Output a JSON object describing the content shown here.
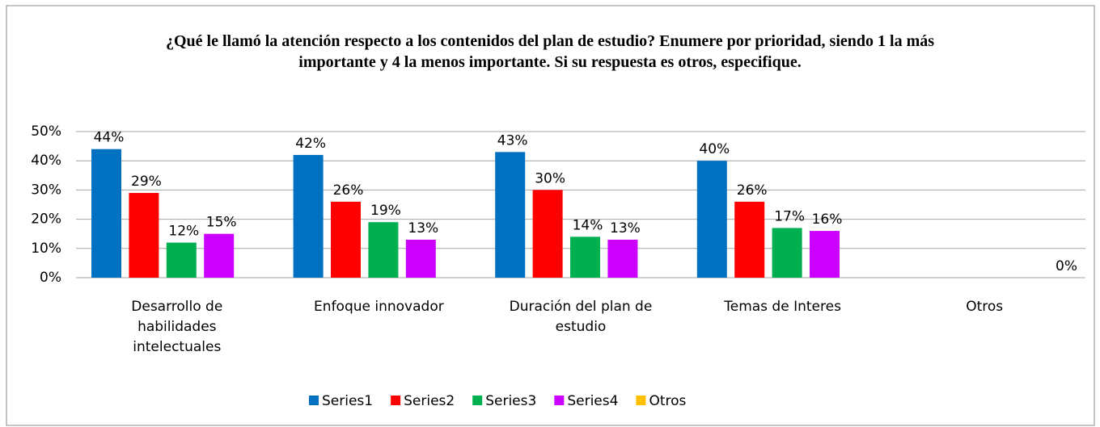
{
  "chart_data": {
    "type": "bar",
    "title": "¿Qué le llamó la atención respecto a los contenidos del plan de estudio? Enumere por prioridad, siendo 1 la más importante y 4 la menos importante. Si su respuesta es otros, especifique.",
    "categories": [
      "Desarrollo de habilidades intelectuales",
      "Enfoque innovador",
      "Duración del plan de estudio",
      "Temas de Interes",
      "Otros"
    ],
    "series": [
      {
        "name": "Series1",
        "color": "#0070c0",
        "values": [
          44,
          42,
          43,
          40,
          null
        ],
        "value_labels": [
          "44%",
          "42%",
          "43%",
          "40%",
          null
        ]
      },
      {
        "name": "Series2",
        "color": "#ff0000",
        "values": [
          29,
          26,
          30,
          26,
          null
        ],
        "value_labels": [
          "29%",
          "26%",
          "30%",
          "26%",
          null
        ]
      },
      {
        "name": "Series3",
        "color": "#00b050",
        "values": [
          12,
          19,
          14,
          17,
          null
        ],
        "value_labels": [
          "12%",
          "19%",
          "14%",
          "17%",
          null
        ]
      },
      {
        "name": "Series4",
        "color": "#cc00ff",
        "values": [
          15,
          13,
          13,
          16,
          null
        ],
        "value_labels": [
          "15%",
          "13%",
          "13%",
          "16%",
          null
        ]
      },
      {
        "name": "Otros",
        "color": "#ffc000",
        "values": [
          null,
          null,
          null,
          null,
          0
        ],
        "value_labels": [
          null,
          null,
          null,
          null,
          "0%"
        ]
      }
    ],
    "ylim": [
      0,
      50
    ],
    "yticks": [
      {
        "value": 0,
        "label": "0%"
      },
      {
        "value": 10,
        "label": "10%"
      },
      {
        "value": 20,
        "label": "20%"
      },
      {
        "value": 30,
        "label": "30%"
      },
      {
        "value": 40,
        "label": "40%"
      },
      {
        "value": 50,
        "label": "50%"
      }
    ],
    "grid": true,
    "legend": "bottom"
  }
}
